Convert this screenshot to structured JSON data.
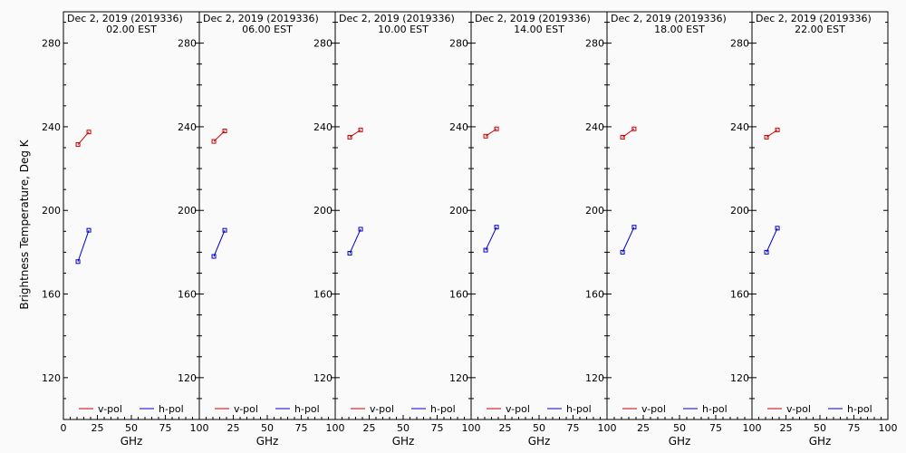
{
  "chart_data": {
    "type": "line",
    "ylabel": "Brightness Temperature, Deg K",
    "xlabel": "GHz",
    "xlim": [
      0,
      100
    ],
    "ylim": [
      100,
      295
    ],
    "xticks": [
      0,
      25,
      50,
      75,
      100
    ],
    "yticks": [
      120,
      160,
      200,
      240,
      280
    ],
    "legend": [
      "v-pol",
      "h-pol"
    ],
    "colors": {
      "v-pol": "#cc0000",
      "h-pol": "#0000cc"
    },
    "panels": [
      {
        "title": "Dec  2, 2019 (2019336)",
        "subtitle": "02.00 EST",
        "series": [
          {
            "name": "v-pol",
            "x": [
              10.7,
              18.7
            ],
            "y": [
              231.5,
              237.5
            ]
          },
          {
            "name": "h-pol",
            "x": [
              10.7,
              18.7
            ],
            "y": [
              175.5,
              190.5
            ]
          }
        ]
      },
      {
        "title": "Dec  2, 2019 (2019336)",
        "subtitle": "06.00 EST",
        "series": [
          {
            "name": "v-pol",
            "x": [
              10.7,
              18.7
            ],
            "y": [
              233.0,
              238.0
            ]
          },
          {
            "name": "h-pol",
            "x": [
              10.7,
              18.7
            ],
            "y": [
              178.0,
              190.5
            ]
          }
        ]
      },
      {
        "title": "Dec  2, 2019 (2019336)",
        "subtitle": "10.00 EST",
        "series": [
          {
            "name": "v-pol",
            "x": [
              10.7,
              18.7
            ],
            "y": [
              235.0,
              238.5
            ]
          },
          {
            "name": "h-pol",
            "x": [
              10.7,
              18.7
            ],
            "y": [
              179.5,
              191.0
            ]
          }
        ]
      },
      {
        "title": "Dec  2, 2019 (2019336)",
        "subtitle": "14.00 EST",
        "series": [
          {
            "name": "v-pol",
            "x": [
              10.7,
              18.7
            ],
            "y": [
              235.5,
              239.0
            ]
          },
          {
            "name": "h-pol",
            "x": [
              10.7,
              18.7
            ],
            "y": [
              181.0,
              192.0
            ]
          }
        ]
      },
      {
        "title": "Dec  2, 2019 (2019336)",
        "subtitle": "18.00 EST",
        "series": [
          {
            "name": "v-pol",
            "x": [
              10.7,
              18.7
            ],
            "y": [
              235.0,
              239.0
            ]
          },
          {
            "name": "h-pol",
            "x": [
              10.7,
              18.7
            ],
            "y": [
              180.0,
              192.0
            ]
          }
        ]
      },
      {
        "title": "Dec  2, 2019 (2019336)",
        "subtitle": "22.00 EST",
        "series": [
          {
            "name": "v-pol",
            "x": [
              10.7,
              18.7
            ],
            "y": [
              235.0,
              238.5
            ]
          },
          {
            "name": "h-pol",
            "x": [
              10.7,
              18.7
            ],
            "y": [
              180.0,
              191.5
            ]
          }
        ]
      }
    ]
  }
}
